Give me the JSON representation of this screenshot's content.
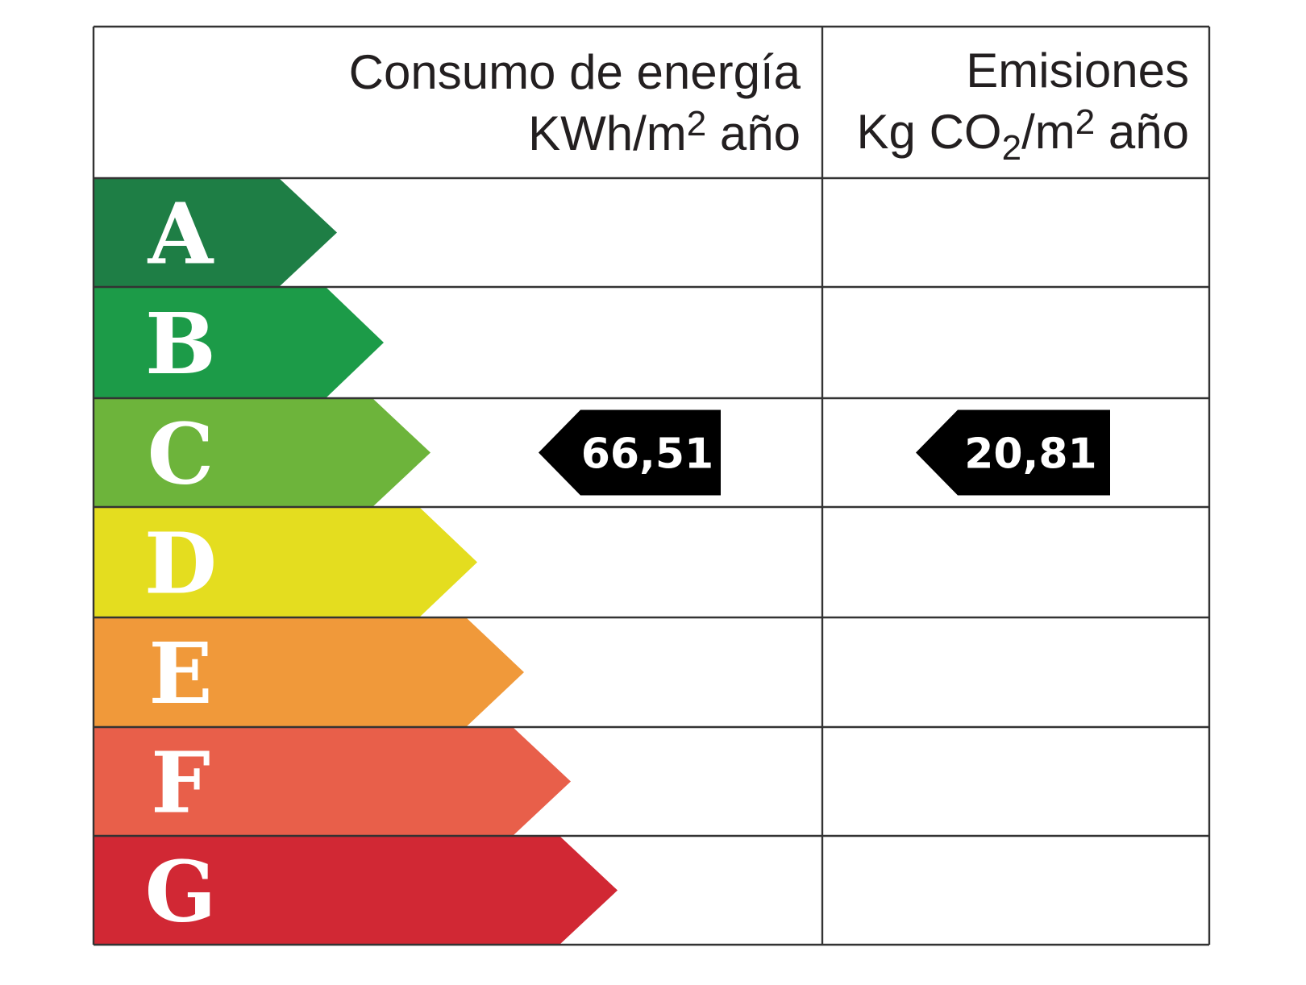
{
  "headers": {
    "energy": {
      "line1": "Consumo de energía",
      "line2_unit": "KWh/m",
      "line2_sup": "2",
      "line2_tail": " año"
    },
    "emissions": {
      "line1": "Emisiones",
      "line2_unit": "Kg CO",
      "line2_sub": "2",
      "line2_mid": "/m",
      "line2_sup": "2",
      "line2_tail": " año"
    }
  },
  "grades": [
    {
      "letter": "A",
      "color": "#1e7e45"
    },
    {
      "letter": "B",
      "color": "#1c9b48"
    },
    {
      "letter": "C",
      "color": "#6db43b"
    },
    {
      "letter": "D",
      "color": "#e4dd1f"
    },
    {
      "letter": "E",
      "color": "#f0993a"
    },
    {
      "letter": "F",
      "color": "#e85f4a"
    },
    {
      "letter": "G",
      "color": "#d12834"
    }
  ],
  "rating": {
    "energy": {
      "grade": "C",
      "value": "66,51"
    },
    "emissions": {
      "grade": "C",
      "value": "20,81"
    }
  },
  "colors": {
    "grid": "#333333",
    "marker": "#000000",
    "text": "#231f20"
  }
}
